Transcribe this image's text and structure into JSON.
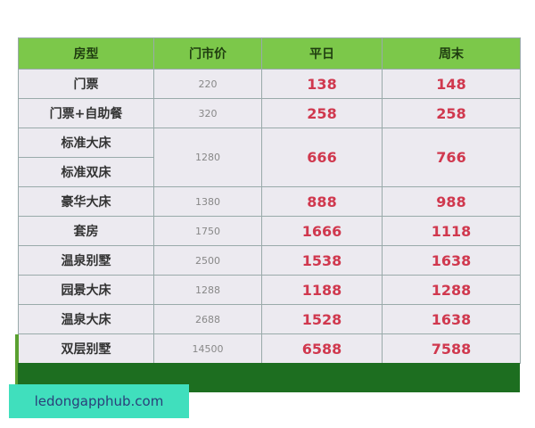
{
  "headers": [
    "房型",
    "门市价",
    "平日",
    "周末"
  ],
  "rows": [
    {
      "room": "门票",
      "rack": "220",
      "weekday": "138",
      "weekend": "148"
    },
    {
      "room": "门票+自助餐",
      "rack": "320",
      "weekday": "258",
      "weekend": "258"
    },
    {
      "room": "标准大床",
      "room2": "标准双床",
      "rack": "1280",
      "weekday": "666",
      "weekend": "766"
    },
    {
      "room": "豪华大床",
      "rack": "1380",
      "weekday": "888",
      "weekend": "988"
    },
    {
      "room": "套房",
      "rack": "1750",
      "weekday": "1666",
      "weekend": "1118"
    },
    {
      "room": "温泉别墅",
      "rack": "2500",
      "weekday": "1538",
      "weekend": "1638"
    },
    {
      "room": "园景大床",
      "rack": "1288",
      "weekday": "1188",
      "weekend": "1288"
    },
    {
      "room": "温泉大床",
      "rack": "2688",
      "weekday": "1528",
      "weekend": "1638"
    },
    {
      "room": "双层别墅",
      "rack": "14500",
      "weekday": "6588",
      "weekend": "7588"
    }
  ],
  "watermark": "ledongapphub.com",
  "colors": {
    "header": "#7cc84a",
    "footer": "#1d6e20",
    "price": "#d0384e",
    "watermark_bg": "#40dfbd"
  }
}
